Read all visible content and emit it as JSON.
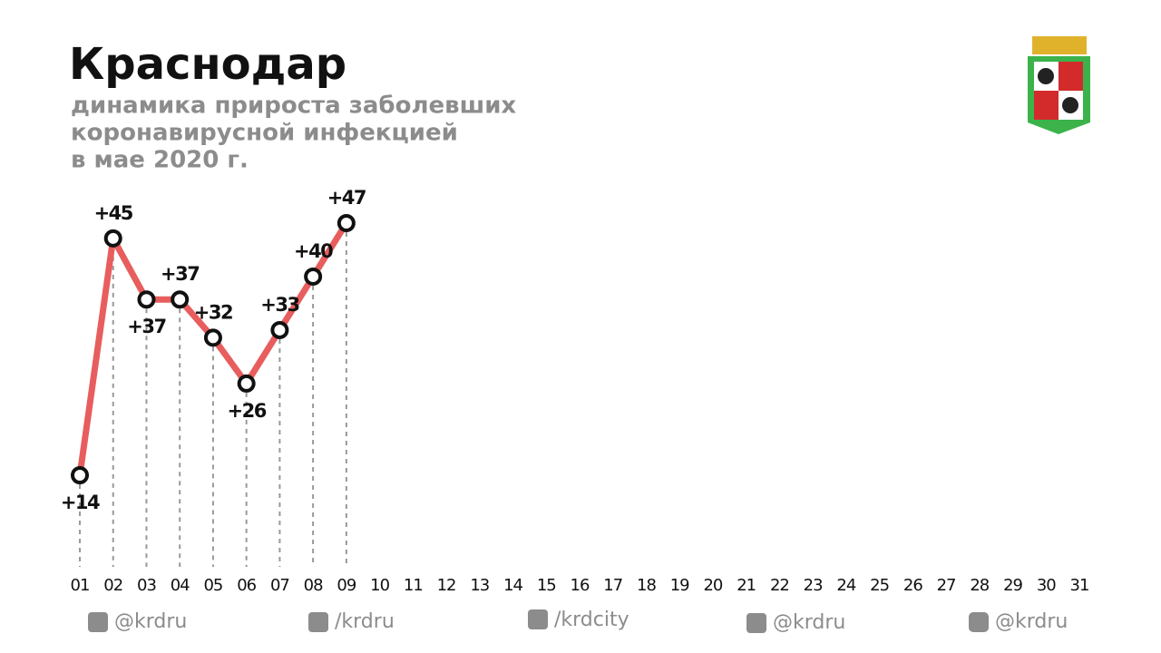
{
  "chart_data": {
    "type": "line",
    "title": "Краснодар",
    "subtitle": [
      "динамика прироста заболевших",
      "коронавирусной инфекцией",
      "в мае 2020 г."
    ],
    "categories": [
      "01",
      "02",
      "03",
      "04",
      "05",
      "06",
      "07",
      "08",
      "09",
      "10",
      "11",
      "12",
      "13",
      "14",
      "15",
      "16",
      "17",
      "18",
      "19",
      "20",
      "21",
      "22",
      "23",
      "24",
      "25",
      "26",
      "27",
      "28",
      "29",
      "30",
      "31"
    ],
    "series": [
      {
        "color": "#e85d5d",
        "values": [
          14,
          45,
          37,
          37,
          32,
          26,
          33,
          40,
          47,
          null,
          null,
          null,
          null,
          null,
          null,
          null,
          null,
          null,
          null,
          null,
          null,
          null,
          null,
          null,
          null,
          null,
          null,
          null,
          null,
          null,
          null
        ],
        "value_labels": [
          "+14",
          "+45",
          "+37",
          "+37",
          "+32",
          "+26",
          "+33",
          "+40",
          "+47",
          null,
          null,
          null,
          null,
          null,
          null,
          null,
          null,
          null,
          null,
          null,
          null,
          null,
          null,
          null,
          null,
          null,
          null,
          null,
          null,
          null,
          null
        ]
      }
    ]
  },
  "footer": [
    "@krdru",
    "/krdru",
    "/krdcity",
    "@krdru",
    "@krdru"
  ]
}
